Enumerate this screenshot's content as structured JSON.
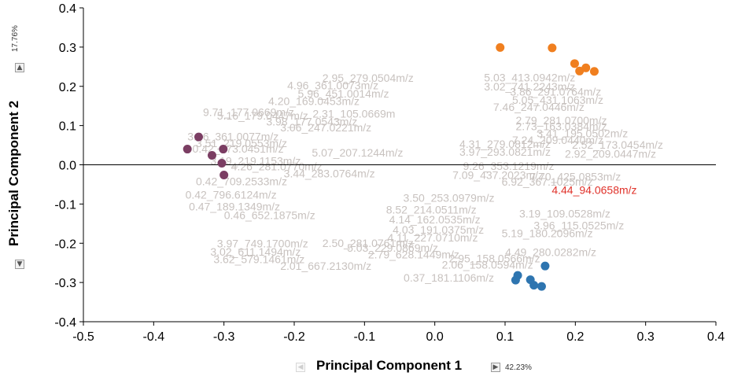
{
  "chart_data": {
    "type": "scatter",
    "title": "",
    "xlabel": "Principal Component 1",
    "ylabel": "Principal Component 2",
    "x_variance": "42.23%",
    "y_variance": "17.76%",
    "xlim": [
      -0.5,
      0.4
    ],
    "ylim": [
      -0.4,
      0.4
    ],
    "xticks": [
      "-0.5",
      "-0.4",
      "-0.3",
      "-0.2",
      "-0.1",
      "0.0",
      "0.1",
      "0.2",
      "0.3",
      "0.4"
    ],
    "yticks": [
      "-0.4",
      "-0.3",
      "-0.2",
      "-0.1",
      "0.0",
      "0.1",
      "0.2",
      "0.3",
      "0.4"
    ],
    "grid": false,
    "legend": "none",
    "score_groups": [
      {
        "color": "#7b3e63",
        "points": [
          [
            -0.352,
            0.04
          ],
          [
            -0.336,
            0.071
          ],
          [
            -0.317,
            0.024
          ],
          [
            -0.303,
            0.004
          ],
          [
            -0.301,
            0.04
          ],
          [
            -0.3,
            -0.026
          ]
        ]
      },
      {
        "color": "#f07f1f",
        "points": [
          [
            0.093,
            0.299
          ],
          [
            0.167,
            0.298
          ],
          [
            0.199,
            0.258
          ],
          [
            0.206,
            0.239
          ],
          [
            0.215,
            0.247
          ],
          [
            0.227,
            0.238
          ]
        ]
      },
      {
        "color": "#2e75b0",
        "points": [
          [
            0.118,
            -0.282
          ],
          [
            0.115,
            -0.294
          ],
          [
            0.136,
            -0.293
          ],
          [
            0.141,
            -0.307
          ],
          [
            0.152,
            -0.31
          ],
          [
            0.157,
            -0.258
          ]
        ]
      }
    ],
    "loading_labels": [
      {
        "text": "2.95_279.0504m/z",
        "x": -0.095,
        "y": 0.222
      },
      {
        "text": "4.96_361.0073m/z",
        "x": -0.145,
        "y": 0.203
      },
      {
        "text": "5.96_451.0014m/z",
        "x": -0.13,
        "y": 0.181
      },
      {
        "text": "4.20_169.0453m/z",
        "x": -0.172,
        "y": 0.162
      },
      {
        "text": "9.71_177.0669m/z",
        "x": -0.265,
        "y": 0.134
      },
      {
        "text": "5.16_179.0447m/z",
        "x": -0.245,
        "y": 0.125
      },
      {
        "text": "2.31_105.0669m",
        "x": -0.115,
        "y": 0.13
      },
      {
        "text": "3.98_177.0543m/z",
        "x": -0.175,
        "y": 0.11
      },
      {
        "text": "3.06_247.0221m/z",
        "x": -0.155,
        "y": 0.095
      },
      {
        "text": "3.96_361.0077m/z",
        "x": -0.287,
        "y": 0.072
      },
      {
        "text": "3.51_219.0553m/z",
        "x": -0.275,
        "y": 0.055
      },
      {
        "text": "0.42_173.0451m/z",
        "x": -0.28,
        "y": 0.041
      },
      {
        "text": "5.07_207.1244m/z",
        "x": -0.11,
        "y": 0.031
      },
      {
        "text": "3.19_219.1153m/z",
        "x": -0.255,
        "y": 0.01
      },
      {
        "text": "4.26_281.0770m/z",
        "x": -0.225,
        "y": -0.004
      },
      {
        "text": "3.44_283.0764m/z",
        "x": -0.15,
        "y": -0.022
      },
      {
        "text": "0.42_709.2533m/z",
        "x": -0.275,
        "y": -0.042
      },
      {
        "text": "0.42_796.6124m/z",
        "x": -0.29,
        "y": -0.076
      },
      {
        "text": "0.47_189.1349m/z",
        "x": -0.285,
        "y": -0.106
      },
      {
        "text": "0.46_652.1875m/z",
        "x": -0.235,
        "y": -0.128
      },
      {
        "text": "3.97_749.1700m/z",
        "x": -0.245,
        "y": -0.201
      },
      {
        "text": "3.02_611.1494m/z",
        "x": -0.255,
        "y": -0.222
      },
      {
        "text": "3.62_579.1461m/z",
        "x": -0.25,
        "y": -0.241
      },
      {
        "text": "2.01_667.2130m/z",
        "x": -0.155,
        "y": -0.258
      },
      {
        "text": "2.50_281.0761m/z",
        "x": -0.095,
        "y": -0.199
      },
      {
        "text": "5.03_229.0869m/z",
        "x": -0.06,
        "y": -0.212
      },
      {
        "text": "2.79_628.1449m/z",
        "x": -0.03,
        "y": -0.229
      },
      {
        "text": "2.06_158.0594m/z",
        "x": 0.075,
        "y": -0.255
      },
      {
        "text": "0.37_181.1106m/z",
        "x": 0.02,
        "y": -0.288
      },
      {
        "text": "2.95_158.0566m/z",
        "x": 0.085,
        "y": -0.239
      },
      {
        "text": "4.49_280.0282m/z",
        "x": 0.165,
        "y": -0.223
      },
      {
        "text": "5.19_180.2096m/z",
        "x": 0.16,
        "y": -0.174
      },
      {
        "text": "3.19_109.0528m/z",
        "x": 0.185,
        "y": -0.124
      },
      {
        "text": "4.44_94.0658m/z",
        "x": 0.227,
        "y": -0.064,
        "highlight": true
      },
      {
        "text": "3.96_115.0525m/z",
        "x": 0.205,
        "y": -0.154
      },
      {
        "text": "8.52_214.0511m/z",
        "x": -0.005,
        "y": -0.114
      },
      {
        "text": "3.50_253.0979m/z",
        "x": 0.02,
        "y": -0.084
      },
      {
        "text": "4.11_227.0710m/z",
        "x": -0.003,
        "y": -0.185
      },
      {
        "text": "4.03_191.0375m/z",
        "x": 0.005,
        "y": -0.165
      },
      {
        "text": "4.14_162.0535m/z",
        "x": 0.0,
        "y": -0.139
      },
      {
        "text": "7.09_437.2023m/z",
        "x": 0.09,
        "y": -0.026
      },
      {
        "text": "9.26_353.1219m/z",
        "x": 0.105,
        "y": -0.003
      },
      {
        "text": "3.97_293.0821m/z",
        "x": 0.1,
        "y": 0.033
      },
      {
        "text": "4.31_279.0812m/z",
        "x": 0.1,
        "y": 0.053
      },
      {
        "text": "7.24_209.0440m/z",
        "x": 0.175,
        "y": 0.063
      },
      {
        "text": "2.73_163.0384m/z",
        "x": 0.18,
        "y": 0.098
      },
      {
        "text": "2.79_281.0700m/z",
        "x": 0.18,
        "y": 0.113
      },
      {
        "text": "7.46_247.0446m/z",
        "x": 0.148,
        "y": 0.147
      },
      {
        "text": "5.05_431.1063m/z",
        "x": 0.175,
        "y": 0.165
      },
      {
        "text": "3.86_291.0764m/z",
        "x": 0.172,
        "y": 0.186
      },
      {
        "text": "5.03_413.0942m/z",
        "x": 0.135,
        "y": 0.223
      },
      {
        "text": "3.02_741.2243m/z",
        "x": 0.135,
        "y": 0.2
      },
      {
        "text": "7.70_425.0853m/z",
        "x": 0.2,
        "y": -0.03
      },
      {
        "text": "3.41_195.0502m/z",
        "x": 0.21,
        "y": 0.08
      },
      {
        "text": "6.92_367.1025m/z",
        "x": 0.16,
        "y": -0.043
      },
      {
        "text": "2.52_173.0454m/z",
        "x": 0.26,
        "y": 0.051
      },
      {
        "text": "2.92_209.0447m/z",
        "x": 0.25,
        "y": 0.028
      }
    ]
  }
}
